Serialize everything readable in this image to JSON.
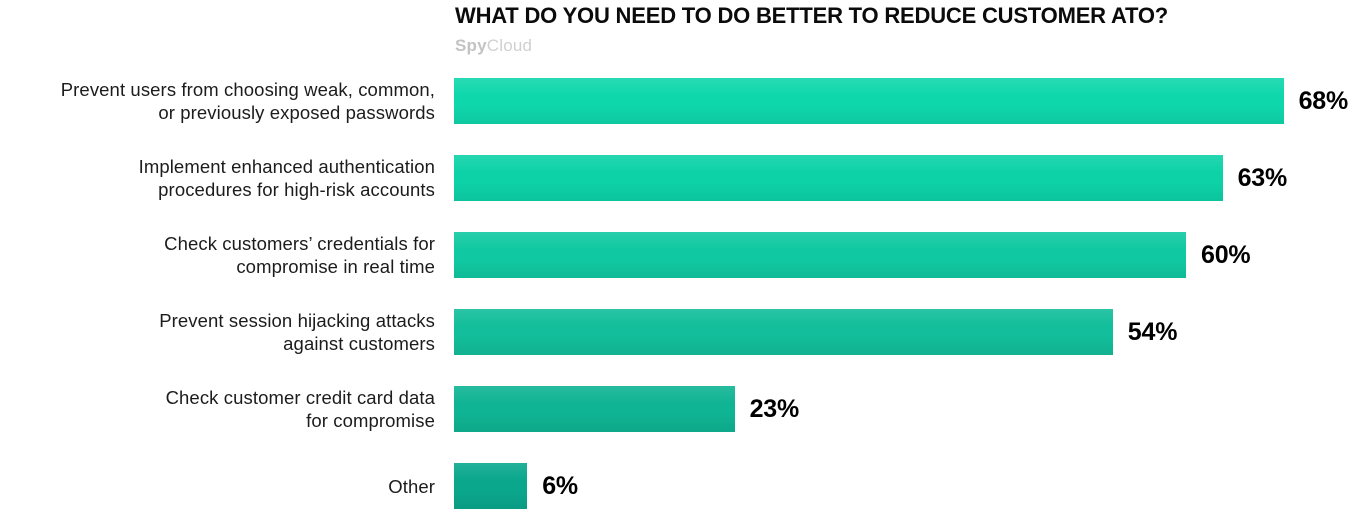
{
  "page": {
    "background": "#ffffff"
  },
  "logo": {
    "bold": "Spy",
    "light": "Cloud"
  },
  "chart_data": {
    "type": "bar",
    "orientation": "horizontal",
    "title": "WHAT DO YOU NEED TO DO BETTER TO REDUCE CUSTOMER ATO?",
    "source_watermark": "SpyCloud",
    "categories": [
      "Prevent users from choosing weak, common, or previously exposed passwords",
      "Implement enhanced authentication procedures for high-risk accounts",
      "Check customers’ credentials for compromise in real time",
      "Prevent session hijacking attacks against customers",
      "Check customer credit card data for compromise",
      "Other"
    ],
    "values": [
      68,
      63,
      60,
      54,
      23,
      6
    ],
    "value_labels": [
      "68%",
      "63%",
      "60%",
      "54%",
      "23%",
      "6%"
    ],
    "label_lines": [
      [
        "Prevent users from choosing weak, common,",
        "or previously exposed passwords"
      ],
      [
        "Implement enhanced authentication",
        "procedures for high-risk accounts"
      ],
      [
        "Check customers’ credentials for",
        "compromise in real time"
      ],
      [
        "Prevent session hijacking attacks",
        "against customers"
      ],
      [
        "Check customer credit card data",
        "for compromise"
      ],
      [
        "Other"
      ]
    ],
    "bar_colors": [
      "#0fd7ac",
      "#0dd2a8",
      "#10c9a2",
      "#12be9b",
      "#0fb494",
      "#0aa78d"
    ],
    "xlim": [
      0,
      100
    ],
    "grid": false,
    "legend": "none",
    "value_label_position": "right-of-bar",
    "xlabel": "",
    "ylabel": ""
  }
}
